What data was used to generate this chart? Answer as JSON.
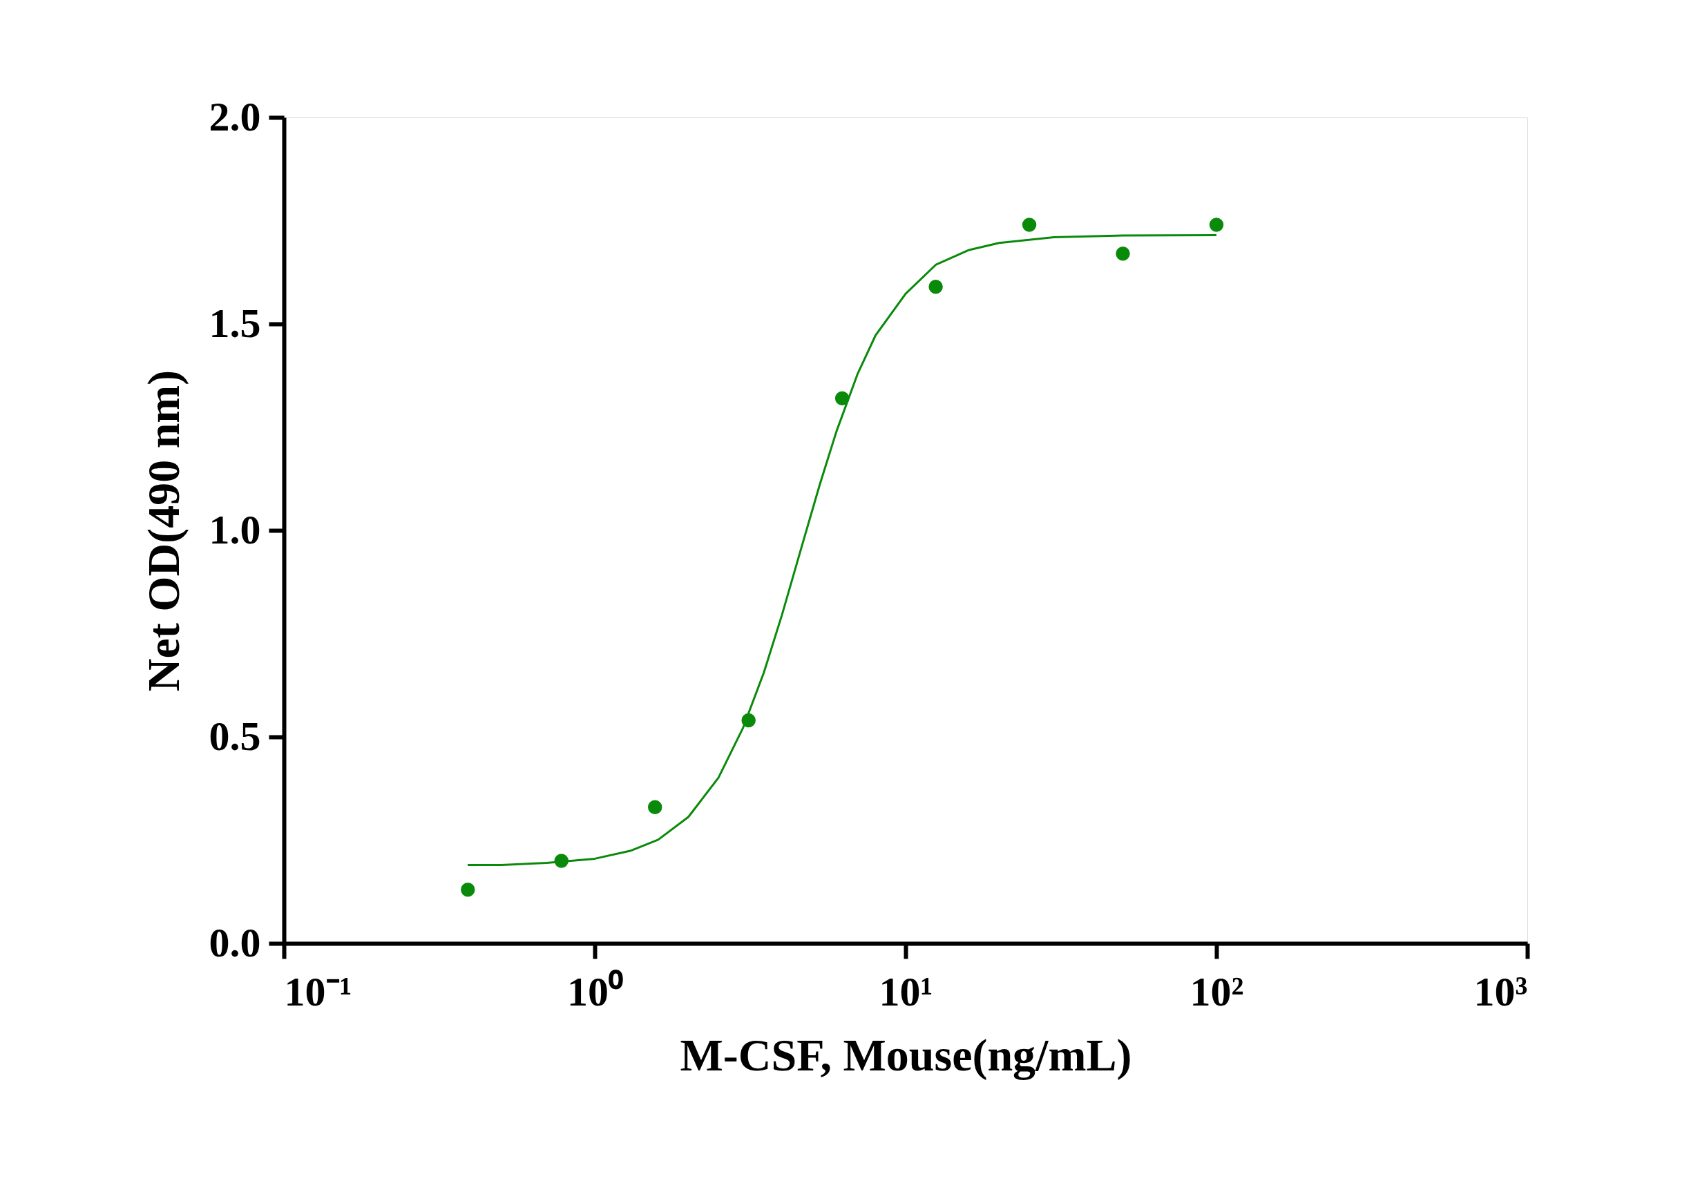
{
  "chart_data": {
    "type": "scatter",
    "xlabel": "M-CSF, Mouse(ng/mL)",
    "ylabel": "Net OD(490 nm)",
    "log": "x",
    "grid": false,
    "legend": false,
    "xlim": [
      0.1,
      1000
    ],
    "ylim": [
      0,
      2
    ],
    "xticks": [
      {
        "value": 0.1,
        "label": "10⁻¹"
      },
      {
        "value": 1,
        "label": "10⁰"
      },
      {
        "value": 10,
        "label": "10¹"
      },
      {
        "value": 100,
        "label": "10²"
      },
      {
        "value": 1000,
        "label": "10³"
      }
    ],
    "yticks": [
      {
        "value": 0,
        "label": "0.0"
      },
      {
        "value": 0.5,
        "label": "0.5"
      },
      {
        "value": 1,
        "label": "1.0"
      },
      {
        "value": 1.5,
        "label": "1.5"
      },
      {
        "value": 2,
        "label": "2.0"
      }
    ],
    "series": [
      {
        "color": "#0a8a0a",
        "marker": "circle",
        "x": [
          0.390625,
          0.78125,
          1.5625,
          3.125,
          6.25,
          12.5,
          25,
          50,
          100
        ],
        "values": [
          0.13,
          0.2,
          0.33,
          0.54,
          1.32,
          1.59,
          1.74,
          1.67,
          1.74
        ]
      },
      {
        "type": "line",
        "color": "#0a8a0a",
        "marker": "none",
        "line_style": "solid",
        "x": [
          0.39,
          0.5,
          0.7,
          1,
          1.3,
          1.6,
          2,
          2.5,
          3,
          3.5,
          4,
          4.6,
          5.3,
          6,
          7,
          8,
          10,
          12.5,
          16,
          20,
          30,
          50,
          100
        ],
        "values": [
          0.19,
          0.19,
          0.195,
          0.205,
          0.224,
          0.251,
          0.306,
          0.401,
          0.522,
          0.656,
          0.795,
          0.953,
          1.112,
          1.241,
          1.378,
          1.472,
          1.573,
          1.643,
          1.679,
          1.696,
          1.71,
          1.714,
          1.715
        ]
      }
    ]
  }
}
